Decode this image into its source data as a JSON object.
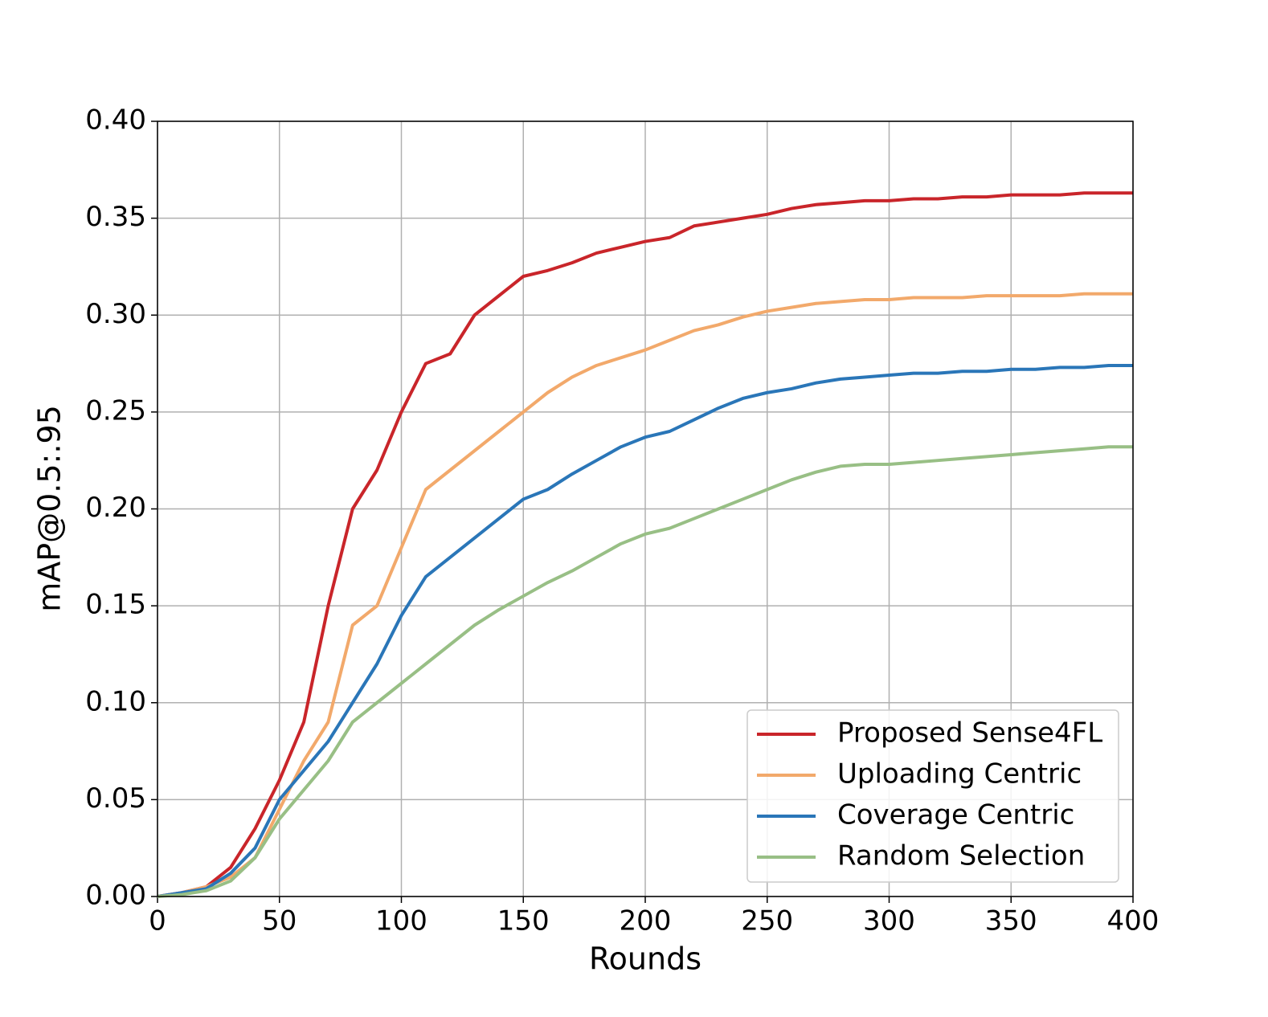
{
  "chart_data": {
    "type": "line",
    "x_label": "Rounds",
    "y_label": "mAP@0.5:.95",
    "x": [
      0,
      10,
      20,
      30,
      40,
      50,
      60,
      70,
      80,
      90,
      100,
      110,
      120,
      130,
      140,
      150,
      160,
      170,
      180,
      190,
      200,
      210,
      220,
      230,
      240,
      250,
      260,
      270,
      280,
      290,
      300,
      310,
      320,
      330,
      340,
      350,
      360,
      370,
      380,
      390,
      400
    ],
    "series": [
      {
        "name": "Proposed Sense4FL",
        "color": "#c9252a",
        "values": [
          0,
          0.002,
          0.005,
          0.015,
          0.035,
          0.06,
          0.09,
          0.15,
          0.2,
          0.22,
          0.25,
          0.275,
          0.28,
          0.3,
          0.31,
          0.32,
          0.323,
          0.327,
          0.332,
          0.335,
          0.338,
          0.34,
          0.346,
          0.348,
          0.35,
          0.352,
          0.355,
          0.357,
          0.358,
          0.359,
          0.359,
          0.36,
          0.36,
          0.361,
          0.361,
          0.362,
          0.362,
          0.362,
          0.363,
          0.363,
          0.363
        ]
      },
      {
        "name": "Uploading Centric",
        "color": "#f2a96b",
        "values": [
          0,
          0.002,
          0.005,
          0.01,
          0.02,
          0.045,
          0.07,
          0.09,
          0.14,
          0.15,
          0.18,
          0.21,
          0.22,
          0.23,
          0.24,
          0.25,
          0.26,
          0.268,
          0.274,
          0.278,
          0.282,
          0.287,
          0.292,
          0.295,
          0.299,
          0.302,
          0.304,
          0.306,
          0.307,
          0.308,
          0.308,
          0.309,
          0.309,
          0.309,
          0.31,
          0.31,
          0.31,
          0.31,
          0.311,
          0.311,
          0.311
        ]
      },
      {
        "name": "Coverage Centric",
        "color": "#2a76b8",
        "values": [
          0,
          0.002,
          0.004,
          0.012,
          0.025,
          0.05,
          0.065,
          0.08,
          0.1,
          0.12,
          0.145,
          0.165,
          0.175,
          0.185,
          0.195,
          0.205,
          0.21,
          0.218,
          0.225,
          0.232,
          0.237,
          0.24,
          0.246,
          0.252,
          0.257,
          0.26,
          0.262,
          0.265,
          0.267,
          0.268,
          0.269,
          0.27,
          0.27,
          0.271,
          0.271,
          0.272,
          0.272,
          0.273,
          0.273,
          0.274,
          0.274
        ]
      },
      {
        "name": "Random Selection",
        "color": "#98bf85",
        "values": [
          0,
          0.001,
          0.003,
          0.008,
          0.02,
          0.04,
          0.055,
          0.07,
          0.09,
          0.1,
          0.11,
          0.12,
          0.13,
          0.14,
          0.148,
          0.155,
          0.162,
          0.168,
          0.175,
          0.182,
          0.187,
          0.19,
          0.195,
          0.2,
          0.205,
          0.21,
          0.215,
          0.219,
          0.222,
          0.223,
          0.223,
          0.224,
          0.225,
          0.226,
          0.227,
          0.228,
          0.229,
          0.23,
          0.231,
          0.232,
          0.232
        ]
      }
    ],
    "xlim": [
      0,
      400
    ],
    "xticks": [
      0,
      50,
      100,
      150,
      200,
      250,
      300,
      350,
      400
    ],
    "ylim": [
      0,
      0.4
    ],
    "yticks": [
      {
        "value": 0,
        "label": "0.00"
      },
      {
        "value": 0.05,
        "label": "0.05"
      },
      {
        "value": 0.1,
        "label": "0.10"
      },
      {
        "value": 0.15,
        "label": "0.15"
      },
      {
        "value": 0.2,
        "label": "0.20"
      },
      {
        "value": 0.25,
        "label": "0.25"
      },
      {
        "value": 0.3,
        "label": "0.30"
      },
      {
        "value": 0.35,
        "label": "0.35"
      },
      {
        "value": 0.4,
        "label": "0.40"
      }
    ],
    "grid": true,
    "legend": "lower right"
  }
}
